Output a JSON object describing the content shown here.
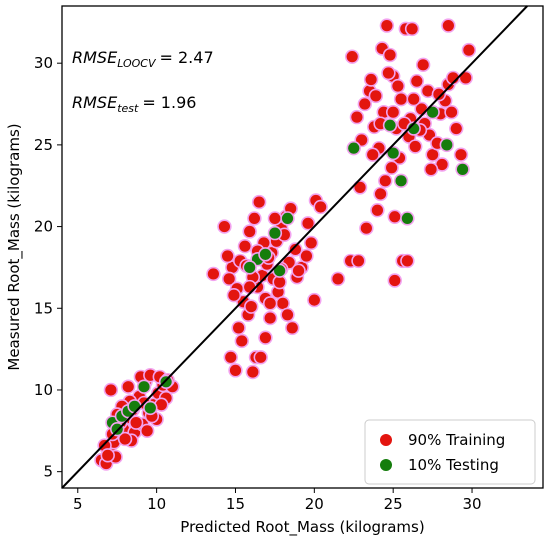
{
  "chart_data": {
    "type": "scatter",
    "xlabel": "Predicted Root_Mass (kilograms)",
    "ylabel": "Measured Root_Mass (kilograms)",
    "xlim": [
      4,
      34.5
    ],
    "ylim": [
      4,
      33.5
    ],
    "x_ticks": [
      5,
      10,
      15,
      20,
      25,
      30
    ],
    "y_ticks": [
      5,
      10,
      15,
      20,
      25,
      30
    ],
    "grid": false,
    "legend_position": "bottom-right",
    "identity_line": true,
    "annotations": {
      "rmse_loocv": {
        "base": "RMSE",
        "sub": "LOOCV",
        "value": "= 2.47"
      },
      "rmse_test": {
        "base": "RMSE",
        "sub": "test",
        "value": "= 1.96"
      }
    },
    "series": [
      {
        "name": "90% Training",
        "color": "#e3150f",
        "halo_color": "#f2a3ef",
        "points": [
          [
            6.5,
            5.7
          ],
          [
            6.8,
            5.5
          ],
          [
            7.0,
            6.4
          ],
          [
            7.3,
            6.8
          ],
          [
            7.6,
            7.4
          ],
          [
            7.4,
            5.9
          ],
          [
            6.7,
            6.6
          ],
          [
            7.9,
            7.6
          ],
          [
            8.1,
            8.3
          ],
          [
            8.6,
            7.4
          ],
          [
            8.4,
            6.9
          ],
          [
            9.1,
            7.9
          ],
          [
            9.5,
            8.6
          ],
          [
            9.8,
            9.1
          ],
          [
            10.1,
            9.8
          ],
          [
            10.4,
            10.3
          ],
          [
            9.3,
            10.5
          ],
          [
            8.9,
            9.6
          ],
          [
            8.3,
            9.3
          ],
          [
            7.8,
            9.0
          ],
          [
            7.1,
            10.0
          ],
          [
            7.5,
            8.5
          ],
          [
            8.2,
            10.2
          ],
          [
            8.7,
            8.0
          ],
          [
            9.4,
            7.5
          ],
          [
            10.0,
            8.2
          ],
          [
            10.6,
            9.5
          ],
          [
            11.0,
            10.2
          ],
          [
            9.0,
            10.8
          ],
          [
            9.6,
            10.9
          ],
          [
            10.2,
            10.8
          ],
          [
            8.0,
            7.0
          ],
          [
            9.7,
            8.4
          ],
          [
            10.3,
            9.1
          ],
          [
            8.5,
            8.8
          ],
          [
            9.2,
            9.2
          ],
          [
            7.7,
            8.0
          ],
          [
            10.7,
            10.6
          ],
          [
            6.9,
            6.0
          ],
          [
            7.2,
            7.3
          ],
          [
            14.3,
            20.0
          ],
          [
            14.8,
            17.5
          ],
          [
            14.6,
            16.8
          ],
          [
            15.1,
            16.2
          ],
          [
            15.3,
            17.9
          ],
          [
            15.6,
            18.8
          ],
          [
            15.5,
            15.4
          ],
          [
            14.9,
            15.8
          ],
          [
            15.8,
            14.6
          ],
          [
            15.2,
            13.8
          ],
          [
            15.4,
            13.0
          ],
          [
            14.7,
            12.0
          ],
          [
            15.0,
            11.2
          ],
          [
            16.1,
            11.1
          ],
          [
            16.3,
            12.0
          ],
          [
            16.6,
            12.0
          ],
          [
            16.9,
            13.2
          ],
          [
            17.2,
            14.4
          ],
          [
            16.0,
            15.1
          ],
          [
            16.4,
            16.3
          ],
          [
            16.7,
            17.0
          ],
          [
            17.0,
            17.7
          ],
          [
            17.3,
            18.4
          ],
          [
            17.6,
            19.1
          ],
          [
            17.9,
            19.9
          ],
          [
            18.2,
            20.6
          ],
          [
            18.5,
            21.1
          ],
          [
            16.5,
            21.5
          ],
          [
            16.2,
            20.5
          ],
          [
            15.9,
            19.7
          ],
          [
            16.8,
            19.0
          ],
          [
            17.1,
            18.1
          ],
          [
            17.4,
            16.8
          ],
          [
            17.7,
            16.0
          ],
          [
            18.0,
            15.3
          ],
          [
            18.3,
            14.6
          ],
          [
            18.6,
            13.8
          ],
          [
            18.9,
            16.9
          ],
          [
            19.2,
            17.5
          ],
          [
            19.5,
            18.2
          ],
          [
            19.8,
            19.0
          ],
          [
            20.1,
            21.6
          ],
          [
            20.4,
            21.2
          ],
          [
            19.6,
            20.2
          ],
          [
            18.8,
            18.6
          ],
          [
            18.4,
            17.8
          ],
          [
            17.8,
            16.6
          ],
          [
            16.9,
            15.6
          ],
          [
            16.1,
            16.9
          ],
          [
            15.7,
            17.6
          ],
          [
            17.5,
            20.5
          ],
          [
            18.1,
            19.5
          ],
          [
            20.0,
            15.5
          ],
          [
            19.0,
            17.3
          ],
          [
            17.2,
            15.3
          ],
          [
            21.5,
            16.8
          ],
          [
            22.3,
            17.9
          ],
          [
            22.8,
            17.9
          ],
          [
            13.6,
            17.1
          ],
          [
            14.5,
            18.2
          ],
          [
            16.4,
            18.5
          ],
          [
            17.9,
            17.4
          ],
          [
            15.9,
            16.3
          ],
          [
            22.4,
            30.4
          ],
          [
            22.7,
            26.7
          ],
          [
            23.0,
            25.3
          ],
          [
            23.2,
            27.5
          ],
          [
            23.5,
            28.3
          ],
          [
            23.8,
            26.1
          ],
          [
            24.1,
            24.8
          ],
          [
            24.3,
            30.9
          ],
          [
            24.6,
            32.3
          ],
          [
            24.8,
            30.5
          ],
          [
            25.0,
            29.2
          ],
          [
            25.3,
            28.6
          ],
          [
            25.5,
            27.8
          ],
          [
            25.8,
            32.1
          ],
          [
            26.2,
            32.1
          ],
          [
            26.5,
            28.9
          ],
          [
            26.8,
            27.2
          ],
          [
            27.0,
            26.3
          ],
          [
            27.3,
            25.6
          ],
          [
            27.5,
            24.4
          ],
          [
            27.8,
            25.1
          ],
          [
            28.0,
            26.9
          ],
          [
            28.3,
            27.7
          ],
          [
            28.5,
            28.7
          ],
          [
            28.8,
            29.1
          ],
          [
            29.0,
            26.0
          ],
          [
            29.3,
            24.4
          ],
          [
            29.6,
            29.1
          ],
          [
            29.8,
            30.8
          ],
          [
            28.5,
            32.3
          ],
          [
            26.0,
            25.5
          ],
          [
            25.4,
            24.2
          ],
          [
            24.9,
            23.6
          ],
          [
            24.5,
            22.8
          ],
          [
            24.2,
            22.0
          ],
          [
            23.7,
            24.4
          ],
          [
            23.3,
            19.9
          ],
          [
            24.0,
            21.0
          ],
          [
            25.1,
            20.6
          ],
          [
            25.6,
            17.9
          ],
          [
            25.9,
            17.9
          ],
          [
            25.1,
            16.7
          ],
          [
            22.9,
            22.4
          ],
          [
            23.9,
            28.0
          ],
          [
            24.4,
            27.0
          ],
          [
            26.1,
            26.6
          ],
          [
            26.7,
            25.9
          ],
          [
            27.2,
            28.3
          ],
          [
            27.9,
            28.1
          ],
          [
            26.4,
            24.9
          ],
          [
            25.2,
            26.0
          ],
          [
            24.7,
            29.4
          ],
          [
            23.6,
            29.0
          ],
          [
            28.1,
            23.8
          ],
          [
            26.9,
            29.9
          ],
          [
            25.7,
            26.3
          ],
          [
            27.4,
            23.5
          ],
          [
            24.2,
            26.3
          ],
          [
            25.0,
            27.0
          ],
          [
            26.3,
            27.8
          ],
          [
            28.7,
            27.0
          ]
        ]
      },
      {
        "name": "10% Testing",
        "color": "#157d0c",
        "halo_color": "#f2a3ef",
        "points": [
          [
            7.2,
            8.0
          ],
          [
            7.8,
            8.4
          ],
          [
            8.2,
            8.7
          ],
          [
            8.6,
            9.0
          ],
          [
            9.2,
            10.2
          ],
          [
            9.6,
            8.9
          ],
          [
            10.6,
            10.5
          ],
          [
            7.5,
            7.6
          ],
          [
            16.4,
            18.0
          ],
          [
            16.9,
            18.3
          ],
          [
            17.5,
            19.6
          ],
          [
            17.8,
            17.3
          ],
          [
            18.3,
            20.5
          ],
          [
            15.9,
            17.5
          ],
          [
            22.5,
            24.8
          ],
          [
            25.0,
            24.5
          ],
          [
            25.5,
            22.8
          ],
          [
            25.9,
            20.5
          ],
          [
            26.3,
            26.0
          ],
          [
            27.5,
            27.0
          ],
          [
            28.4,
            25.0
          ],
          [
            29.4,
            23.5
          ],
          [
            24.8,
            26.2
          ]
        ]
      }
    ]
  }
}
